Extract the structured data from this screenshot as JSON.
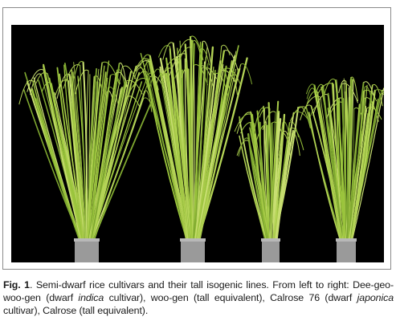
{
  "figure": {
    "label": "Fig. 1",
    "caption_parts": [
      "Semi-dwarf rice cultivars and their tall isogenic lines. From left to right: Dee-geo-woo-gen (dwarf ",
      "indica",
      " cultivar), woo-gen (tall equivalent), Calrose 76 (dwarf ",
      "japonica",
      " cultivar), Calrose (tall equivalent)."
    ]
  },
  "photo": {
    "background_color": "#000000",
    "leaf_colors": [
      "#9ac43c",
      "#b4d456",
      "#7fa830",
      "#c8de72",
      "#a7c948"
    ],
    "pot_color": "#9a9a9a",
    "plants": [
      {
        "name": "Dee-geo-woo-gen",
        "type": "dwarf indica"
      },
      {
        "name": "woo-gen",
        "type": "tall equivalent"
      },
      {
        "name": "Calrose 76",
        "type": "dwarf japonica"
      },
      {
        "name": "Calrose",
        "type": "tall equivalent"
      }
    ]
  }
}
